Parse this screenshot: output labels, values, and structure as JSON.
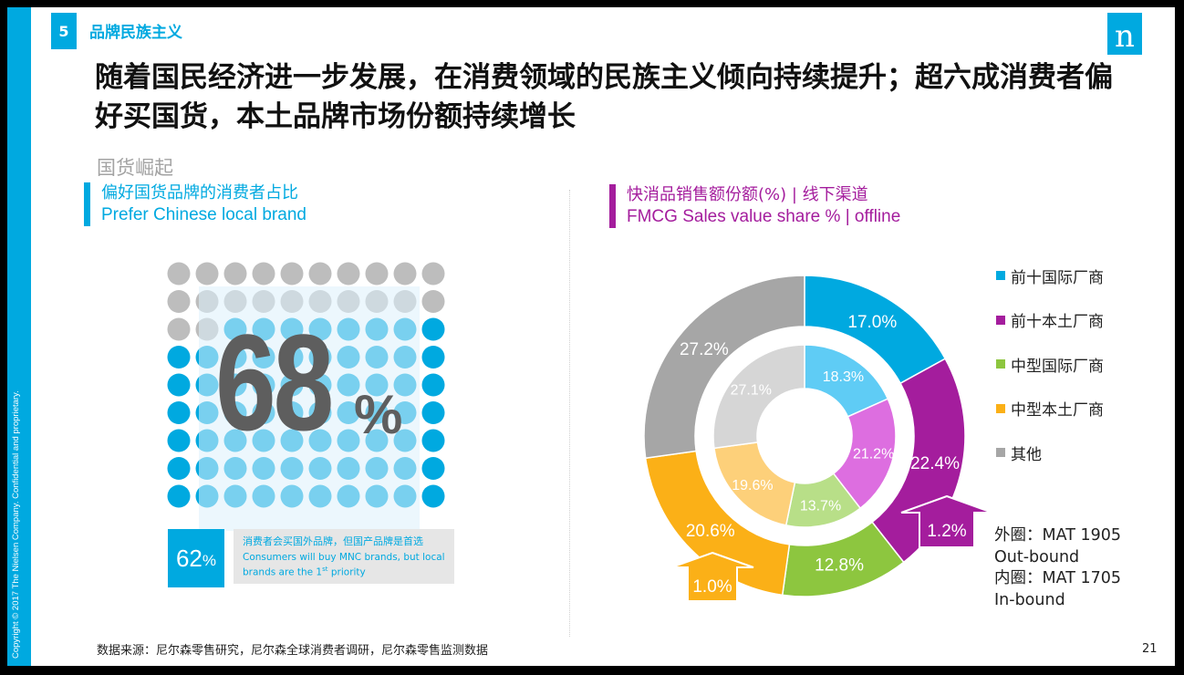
{
  "copyright": "Copyright © 2017 The Nielsen Company. Confidential and proprietary.",
  "section": {
    "number": "5",
    "title": "品牌民族主义"
  },
  "logo": "n",
  "headline": "随着国民经济进一步发展，在消费领域的民族主义倾向持续提升；超六成消费者偏好买国货，本土品牌市场份额持续增长",
  "subheading": "国货崛起",
  "left": {
    "label_cn": "偏好国货品牌的消费者占比",
    "label_en": "Prefer Chinese local brand",
    "dots": {
      "rows": 9,
      "cols": 10,
      "gray_cells": 22,
      "blue_color": "#00a9e0",
      "gray_color": "#bdbdbd"
    },
    "big_value": "68",
    "big_unit": "%",
    "sub_value": "62",
    "sub_unit": "%",
    "note_cn": "消费者会买国外品牌，但国产品牌是首选",
    "note_en_line1": "Consumers will buy MNC brands, but local",
    "note_en_line2_pre": "brands are the 1",
    "note_en_sup": "st",
    "note_en_line2_post": " priority"
  },
  "right": {
    "label_cn": "快消品销售额份额(%) | 线下渠道",
    "label_en": "FMCG Sales value share % | offline"
  },
  "chart_data": {
    "type": "donut",
    "categories": [
      "前十国际厂商",
      "前十本土厂商",
      "中型国际厂商",
      "中型本土厂商",
      "其他"
    ],
    "colors": [
      "#00a9e0",
      "#a41d9d",
      "#8dc63f",
      "#fbb017",
      "#a6a6a6"
    ],
    "inner_colors": [
      "#5fccf5",
      "#dd6ee0",
      "#b8df88",
      "#fdd07a",
      "#d6d6d6"
    ],
    "series": [
      {
        "name": "外圈：MAT 1905",
        "ring": "outer",
        "values": [
          17.0,
          22.4,
          12.8,
          20.6,
          27.2
        ],
        "labels": [
          "17.0%",
          "22.4%",
          "12.8%",
          "20.6%",
          "27.2%"
        ]
      },
      {
        "name": "内圈：MAT 1705",
        "ring": "inner",
        "values": [
          18.3,
          21.2,
          13.7,
          19.6,
          27.1
        ],
        "labels": [
          "18.3%",
          "21.2%",
          "13.7%",
          "19.6%",
          "27.1%"
        ]
      }
    ],
    "annotations": [
      {
        "text": "1.2%",
        "category": "前十本土厂商",
        "direction": "up",
        "color": "#a41d9d"
      },
      {
        "text": "1.0%",
        "category": "中型本土厂商",
        "direction": "up",
        "color": "#fbb017"
      }
    ]
  },
  "legend": [
    "前十国际厂商",
    "前十本土厂商",
    "中型国际厂商",
    "中型本土厂商",
    "其他"
  ],
  "ring_note": {
    "line1": "外圈：MAT 1905",
    "line2": "Out-bound",
    "line3": "内圈：MAT 1705",
    "line4": "In-bound"
  },
  "source": "数据来源：尼尔森零售研究，尼尔森全球消费者调研，尼尔森零售监测数据",
  "page_number": "21"
}
